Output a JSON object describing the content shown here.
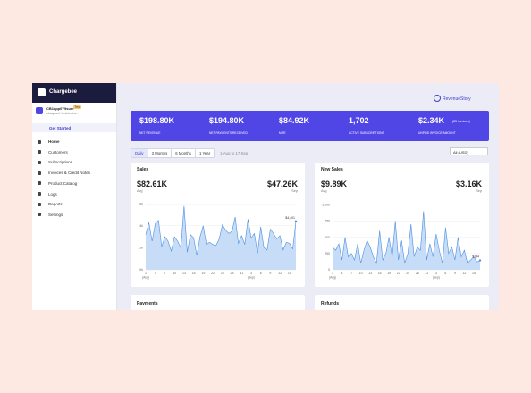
{
  "sidebar": {
    "brand": "Chargebee",
    "site_name": "CB1app0Y9sum",
    "site_badge": "Test",
    "site_email": "cbsupport+test-test-a...",
    "get_started": "Get Started",
    "nav": [
      "Home",
      "Customers",
      "Subscriptions",
      "Invoices & Credit Notes",
      "Product Catalog",
      "Logs",
      "Reports",
      "Settings"
    ]
  },
  "header": {
    "link": "RevenueStory"
  },
  "kpis": [
    {
      "value": "$198.80K",
      "label": "NET REVENUE"
    },
    {
      "value": "$194.80K",
      "label": "NET PAYMENTS RECEIVED"
    },
    {
      "value": "$84.92K",
      "label": "MRR"
    },
    {
      "value": "1,702",
      "label": "ACTIVE SUBSCRIPTIONS"
    },
    {
      "value": "$2.34K",
      "note": "(85 invoices)",
      "label": "UNPAID INVOICE AMOUNT"
    }
  ],
  "filters": {
    "tabs": [
      "Daily",
      "3 Months",
      "6 Months",
      "1 Year"
    ],
    "range": "1-Aug to 17-Sep",
    "currency": "All (USD)"
  },
  "charts": [
    {
      "type": "area",
      "title": "Sales",
      "avg": "$82.61K",
      "avg_label": "Avg",
      "latest": "$47.26K",
      "latest_label": "Sep",
      "categories": [
        "1",
        null,
        null,
        "4",
        null,
        null,
        "7",
        null,
        null,
        "10",
        null,
        null,
        "13",
        null,
        null,
        "16",
        null,
        null,
        "19",
        null,
        null,
        "22",
        null,
        null,
        "25",
        null,
        null,
        "28",
        null,
        null,
        "31",
        null,
        null,
        "3",
        null,
        null,
        "6",
        null,
        null,
        "9",
        null,
        null,
        "12",
        null,
        null,
        "15",
        null,
        null
      ],
      "group_labels": [
        "(Aug)",
        "(Sep)"
      ],
      "values": [
        3200,
        4300,
        2600,
        4200,
        4500,
        2100,
        3000,
        2600,
        1700,
        3000,
        2600,
        2000,
        5800,
        1600,
        3200,
        2900,
        1300,
        3000,
        4000,
        2300,
        2500,
        2300,
        2200,
        2800,
        4100,
        3600,
        3300,
        3500,
        4800,
        2400,
        3100,
        2300,
        4600,
        2900,
        3300,
        1500,
        3900,
        2000,
        1800,
        3700,
        3300,
        2800,
        3100,
        1800,
        2500,
        2400,
        1900,
        4401
      ],
      "last_value_label": "$4,401",
      "ylim": [
        0,
        6500
      ],
      "yticks": [
        {
          "value": 0,
          "label": "0k"
        },
        {
          "value": 2000,
          "label": "2k"
        },
        {
          "value": 4000,
          "label": "4k"
        },
        {
          "value": 6000,
          "label": "6k"
        }
      ],
      "color": "#4a90e2"
    },
    {
      "type": "area",
      "title": "New Sales",
      "avg": "$9.89K",
      "avg_label": "Avg",
      "latest": "$3.16K",
      "latest_label": "Sep",
      "categories": [
        "1",
        null,
        null,
        "4",
        null,
        null,
        "7",
        null,
        null,
        "10",
        null,
        null,
        "13",
        null,
        null,
        "16",
        null,
        null,
        "19",
        null,
        null,
        "22",
        null,
        null,
        "25",
        null,
        null,
        "28",
        null,
        null,
        "31",
        null,
        null,
        "3",
        null,
        null,
        "6",
        null,
        null,
        "9",
        null,
        null,
        "12",
        null,
        null,
        "15",
        null,
        null
      ],
      "group_labels": [
        "(Aug)",
        "(Sep)"
      ],
      "values": [
        350,
        300,
        400,
        150,
        500,
        200,
        250,
        150,
        400,
        100,
        300,
        450,
        350,
        200,
        100,
        600,
        150,
        250,
        500,
        200,
        750,
        150,
        450,
        100,
        250,
        700,
        200,
        350,
        300,
        900,
        150,
        400,
        200,
        550,
        300,
        100,
        650,
        250,
        350,
        150,
        500,
        200,
        300,
        100,
        150,
        200,
        120,
        144
      ],
      "last_value_label": "$144",
      "ylim": [
        0,
        1100
      ],
      "yticks": [
        0,
        250,
        500,
        750,
        {
          "value": 1000,
          "label": "1,000"
        }
      ],
      "color": "#4a90e2"
    }
  ],
  "panels": [
    "Payments",
    "Refunds"
  ]
}
